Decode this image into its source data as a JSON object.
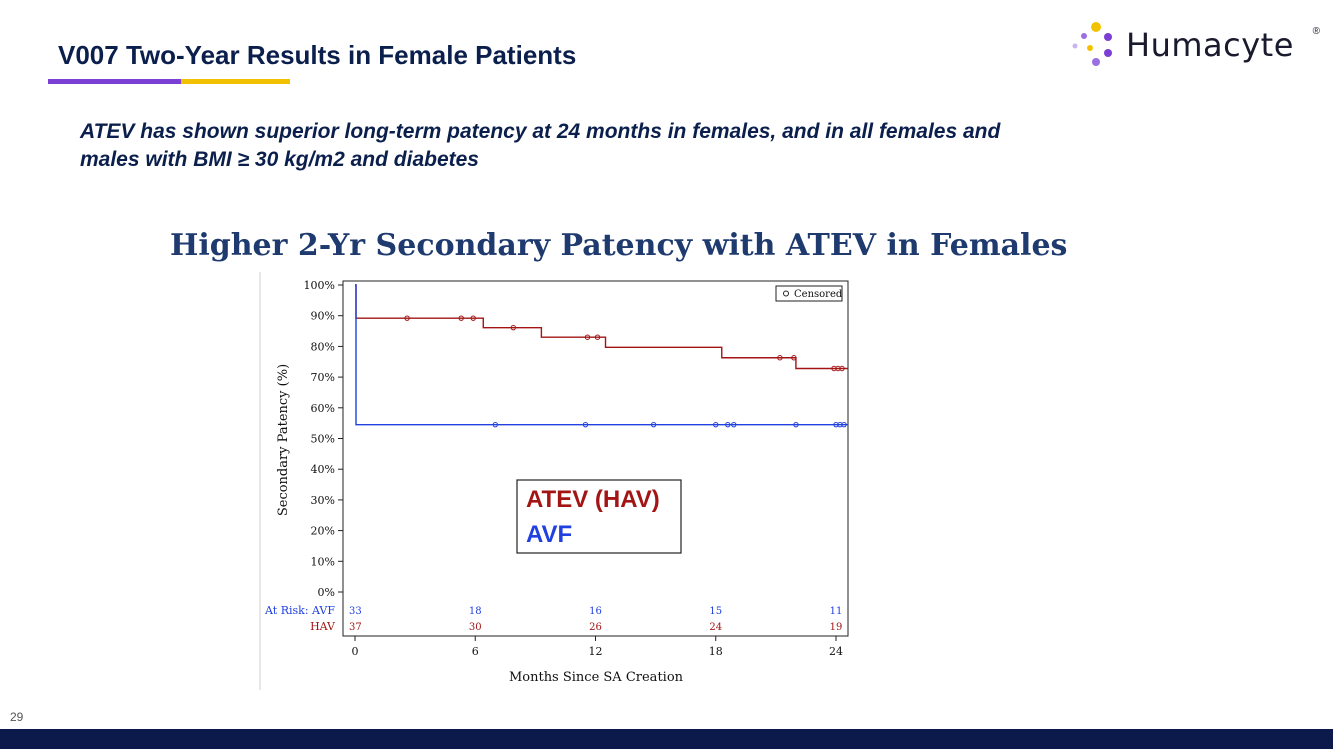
{
  "slide": {
    "title": "V007 Two-Year Results in Female Patients",
    "subtitle_line1": "ATEV has shown superior long-term patency at 24 months in females, and in all females and",
    "subtitle_line2": "males with BMI ≥ 30 kg/m2 and diabetes",
    "page_number": "29"
  },
  "logo": {
    "text": "Humacyte",
    "reg_mark": "®",
    "dot_colors": [
      "#f2c200",
      "#9b6fe0",
      "#7b3fd4",
      "#c9b3f0",
      "#f2c200",
      "#7b3fd4",
      "#9b6fe0"
    ]
  },
  "colors": {
    "title": "#0b1f4d",
    "footer": "#0b1a4a",
    "hav": "#a31515",
    "avf": "#2040e0"
  },
  "chart_data": {
    "type": "line",
    "title": "Higher 2-Yr Secondary Patency with ATEV in Females",
    "xlabel": "Months Since SA Creation",
    "ylabel": "Secondary Patency (%)",
    "xlim": [
      0,
      24
    ],
    "ylim": [
      0,
      100
    ],
    "xticks": [
      0,
      6,
      12,
      18,
      24
    ],
    "yticks": [
      0,
      10,
      20,
      30,
      40,
      50,
      60,
      70,
      80,
      90,
      100
    ],
    "ytick_suffix": "%",
    "grid": false,
    "censor_legend": "Censored",
    "series": [
      {
        "name": "ATEV (HAV)",
        "color": "#a31515",
        "steps": [
          [
            0,
            100
          ],
          [
            0.05,
            89.2
          ],
          [
            6.4,
            86.1
          ],
          [
            9.3,
            83.0
          ],
          [
            12.5,
            79.7
          ],
          [
            18.3,
            76.3
          ],
          [
            22.0,
            72.8
          ],
          [
            24.6,
            72.8
          ]
        ],
        "censored": [
          [
            2.6,
            89.2
          ],
          [
            5.3,
            89.2
          ],
          [
            5.9,
            89.2
          ],
          [
            7.9,
            86.1
          ],
          [
            11.6,
            83.0
          ],
          [
            12.1,
            83.0
          ],
          [
            21.2,
            76.3
          ],
          [
            21.9,
            76.3
          ],
          [
            23.9,
            72.8
          ],
          [
            24.1,
            72.8
          ],
          [
            24.3,
            72.8
          ]
        ]
      },
      {
        "name": "AVF",
        "color": "#2040e0",
        "steps": [
          [
            0,
            100
          ],
          [
            0.05,
            54.5
          ],
          [
            24.6,
            54.5
          ]
        ],
        "censored": [
          [
            7.0,
            54.5
          ],
          [
            11.5,
            54.5
          ],
          [
            14.9,
            54.5
          ],
          [
            18.0,
            54.5
          ],
          [
            18.6,
            54.5
          ],
          [
            18.9,
            54.5
          ],
          [
            22.0,
            54.5
          ],
          [
            24.0,
            54.5
          ],
          [
            24.2,
            54.5
          ],
          [
            24.4,
            54.5
          ]
        ]
      }
    ],
    "legend": {
      "placement": "center",
      "labels": [
        "ATEV (HAV)",
        "AVF"
      ]
    },
    "at_risk": {
      "label_avf": "At Risk: AVF",
      "label_hav": "HAV",
      "months": [
        0,
        6,
        12,
        18,
        24
      ],
      "avf": [
        "33",
        "18",
        "16",
        "15",
        "11"
      ],
      "hav": [
        "37",
        "30",
        "26",
        "24",
        "19"
      ]
    }
  }
}
